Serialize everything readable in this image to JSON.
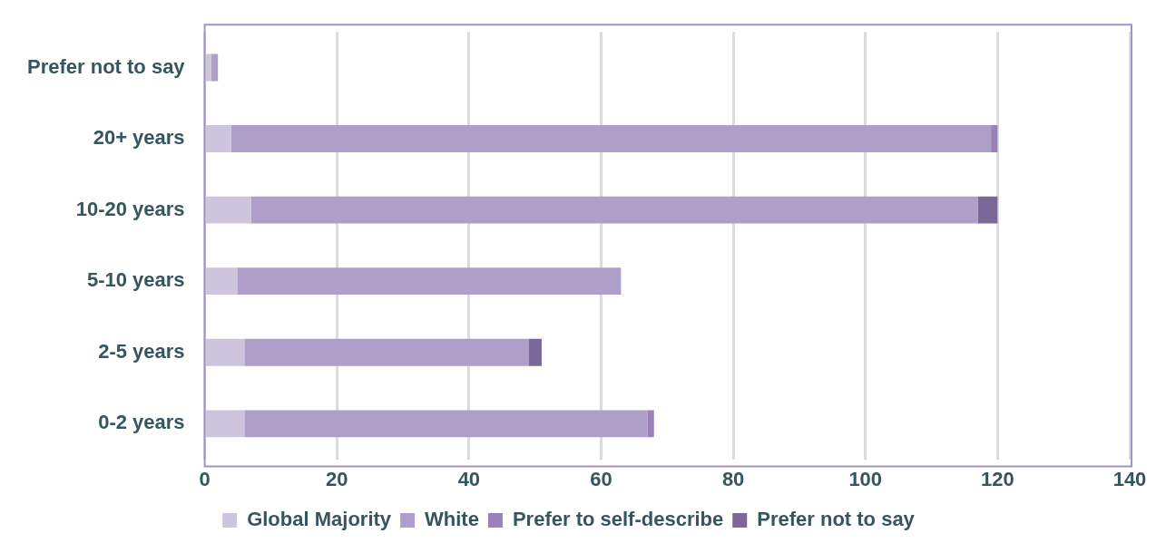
{
  "chart_data": {
    "type": "bar",
    "orientation": "horizontal",
    "stacked": true,
    "categories": [
      "Prefer not to say",
      "20+ years",
      "10-20 years",
      "5-10 years",
      "2-5 years",
      "0-2 years"
    ],
    "series": [
      {
        "name": "Global Majority",
        "color": "#cdc5de",
        "values": [
          1,
          4,
          7,
          5,
          6,
          6
        ]
      },
      {
        "name": "White",
        "color": "#ae9fc9",
        "values": [
          1,
          115,
          110,
          58,
          43,
          61
        ]
      },
      {
        "name": "Prefer to self-describe",
        "color": "#9a82b9",
        "values": [
          0,
          1,
          0,
          0,
          0,
          1
        ]
      },
      {
        "name": "Prefer not to say",
        "color": "#7a6898",
        "values": [
          0,
          0,
          3,
          0,
          2,
          0
        ]
      }
    ],
    "xlim": [
      0,
      140
    ],
    "xticks": [
      0,
      20,
      40,
      60,
      80,
      100,
      120,
      140
    ],
    "grid": "x",
    "legend": "bottom"
  }
}
